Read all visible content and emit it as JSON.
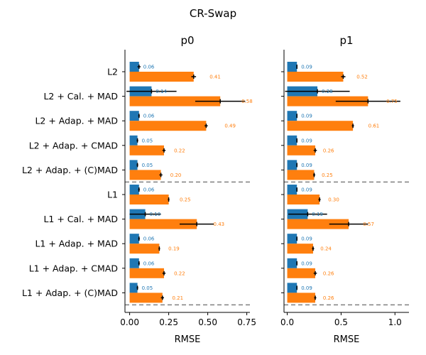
{
  "figure_title": "CR-Swap",
  "colors": {
    "blue": "#1f77b4",
    "orange": "#ff7f0e",
    "axis": "#000000",
    "dashed": "#808080"
  },
  "chart_data": [
    {
      "type": "bar",
      "orientation": "horizontal",
      "title": "p0",
      "xlabel": "RMSE",
      "ylabel": "",
      "xlim": [
        -0.03,
        0.77
      ],
      "xticks": [
        0.0,
        0.25,
        0.5,
        0.75
      ],
      "xtick_labels": [
        "0.00",
        "0.25",
        "0.50",
        "0.75"
      ],
      "categories": [
        "L2",
        "L2 + Cal. + MAD",
        "L2 + Adap. + MAD",
        "L2 + Adap. + CMAD",
        "L2 + Adap. + (C)MAD",
        "L1",
        "L1 + Cal. + MAD",
        "L1 + Adap. + MAD",
        "L1 + Adap. + CMAD",
        "L1 + Adap. + (C)MAD"
      ],
      "separators_after": [
        4,
        9
      ],
      "series": [
        {
          "color": "blue",
          "values": [
            0.06,
            0.14,
            0.06,
            0.05,
            0.05,
            0.06,
            0.1,
            0.06,
            0.06,
            0.05
          ],
          "errors": [
            0.01,
            0.16,
            0.005,
            0.005,
            0.005,
            0.005,
            0.1,
            0.005,
            0.005,
            0.005
          ],
          "labels": [
            "0.06",
            "0.14",
            "0.06",
            "0.05",
            "0.05",
            "0.06",
            "0.10",
            "0.06",
            "0.06",
            "0.05"
          ]
        },
        {
          "color": "orange",
          "values": [
            0.41,
            0.58,
            0.49,
            0.22,
            0.2,
            0.25,
            0.43,
            0.19,
            0.22,
            0.21
          ],
          "errors": [
            0.015,
            0.16,
            0.01,
            0.01,
            0.01,
            0.005,
            0.11,
            0.005,
            0.01,
            0.01
          ],
          "labels": [
            "0.41",
            "0.58",
            "0.49",
            "0.22",
            "0.20",
            "0.25",
            "0.43",
            "0.19",
            "0.22",
            "0.21"
          ]
        }
      ]
    },
    {
      "type": "bar",
      "orientation": "horizontal",
      "title": "p1",
      "xlabel": "RMSE",
      "ylabel": "",
      "xlim": [
        -0.03,
        1.13
      ],
      "xticks": [
        0.0,
        0.5,
        1.0
      ],
      "xtick_labels": [
        "0.0",
        "0.5",
        "1.0"
      ],
      "categories": [
        "L2",
        "L2 + Cal. + MAD",
        "L2 + Adap. + MAD",
        "L2 + Adap. + CMAD",
        "L2 + Adap. + (C)MAD",
        "L1",
        "L1 + Cal. + MAD",
        "L1 + Adap. + MAD",
        "L1 + Adap. + CMAD",
        "L1 + Adap. + (C)MAD"
      ],
      "separators_after": [
        4,
        9
      ],
      "series": [
        {
          "color": "blue",
          "values": [
            0.09,
            0.28,
            0.09,
            0.09,
            0.09,
            0.09,
            0.19,
            0.09,
            0.09,
            0.09
          ],
          "errors": [
            0.005,
            0.3,
            0.005,
            0.005,
            0.005,
            0.005,
            0.18,
            0.005,
            0.005,
            0.005
          ],
          "labels": [
            "0.09",
            "0.28",
            "0.09",
            "0.09",
            "0.09",
            "0.09",
            "0.19",
            "0.09",
            "0.09",
            "0.09"
          ]
        },
        {
          "color": "orange",
          "values": [
            0.52,
            0.75,
            0.61,
            0.26,
            0.25,
            0.3,
            0.57,
            0.24,
            0.26,
            0.26
          ],
          "errors": [
            0.02,
            0.3,
            0.01,
            0.015,
            0.01,
            0.01,
            0.18,
            0.01,
            0.015,
            0.01
          ],
          "labels": [
            "0.52",
            "0.75",
            "0.61",
            "0.26",
            "0.25",
            "0.30",
            "0.57",
            "0.24",
            "0.26",
            "0.26"
          ]
        }
      ]
    }
  ]
}
